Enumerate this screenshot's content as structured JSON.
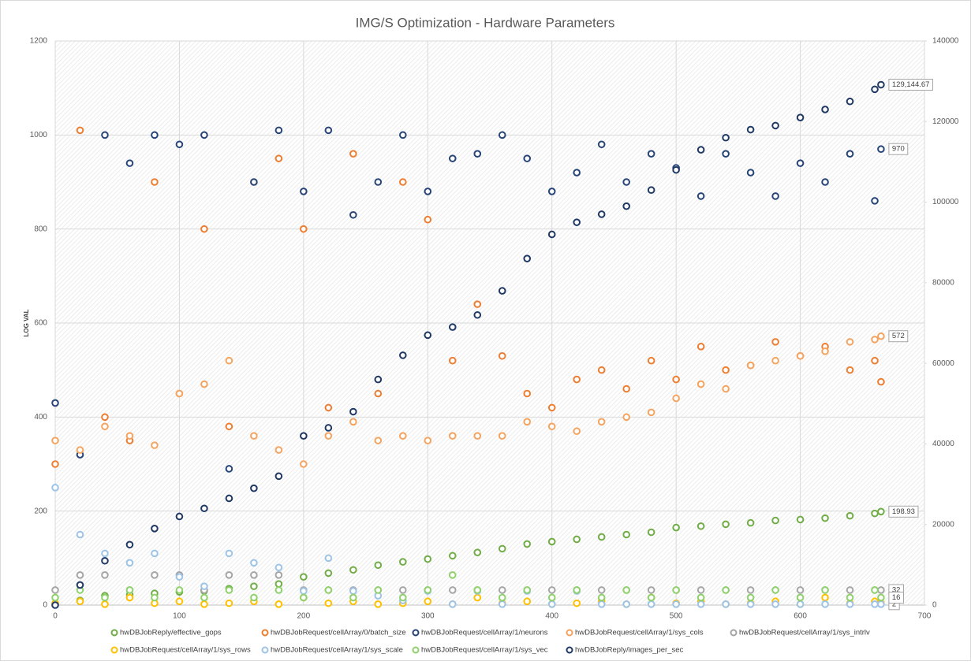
{
  "chart_data": {
    "type": "scatter",
    "title": "IMG/S Optimization - Hardware Parameters",
    "y_label": "LOG VAL",
    "x": [
      0,
      20,
      40,
      60,
      80,
      100,
      120,
      140,
      160,
      180,
      200,
      220,
      240,
      260,
      280,
      300,
      320,
      340,
      360,
      380,
      400,
      420,
      440,
      460,
      480,
      500,
      520,
      540,
      560,
      580,
      600,
      620,
      640,
      660,
      665
    ],
    "xlim": [
      0,
      700
    ],
    "xticks": [
      0,
      100,
      200,
      300,
      400,
      500,
      600,
      700
    ],
    "ylim": [
      0,
      1200
    ],
    "yticks": [
      0,
      200,
      400,
      600,
      800,
      1000,
      1200
    ],
    "y2lim": [
      0,
      140000
    ],
    "y2ticks": [
      0,
      20000,
      40000,
      60000,
      80000,
      100000,
      120000,
      140000
    ],
    "grid": true,
    "legend": "bottom",
    "series": [
      {
        "name": "hwDBJobReply/effective_gops",
        "color": "#70ad47",
        "values": [
          2,
          10,
          20,
          22,
          25,
          28,
          30,
          35,
          40,
          45,
          60,
          68,
          75,
          85,
          92,
          98,
          105,
          112,
          120,
          130,
          135,
          140,
          145,
          150,
          155,
          165,
          168,
          172,
          175,
          180,
          182,
          185,
          190,
          195,
          198.93
        ],
        "value_labels": [
          null,
          null,
          null,
          null,
          null,
          null,
          null,
          null,
          null,
          null,
          null,
          null,
          null,
          null,
          null,
          null,
          null,
          null,
          null,
          null,
          null,
          null,
          null,
          null,
          null,
          null,
          null,
          null,
          null,
          null,
          null,
          null,
          null,
          null,
          "198.93"
        ]
      },
      {
        "name": "hwDBJobRequest/cellArray/0/batch_size",
        "color": "#ed7d31",
        "values": [
          300,
          1010,
          400,
          350,
          900,
          450,
          800,
          380,
          900,
          950,
          800,
          420,
          960,
          450,
          900,
          820,
          520,
          640,
          530,
          450,
          420,
          480,
          500,
          460,
          520,
          480,
          550,
          500,
          510,
          560,
          530,
          550,
          500,
          520,
          475
        ]
      },
      {
        "name": "hwDBJobRequest/cellArray/1/neurons",
        "color": "#264478",
        "values": [
          430,
          320,
          1000,
          940,
          1000,
          980,
          1000,
          290,
          900,
          1010,
          880,
          1010,
          830,
          900,
          1000,
          880,
          950,
          960,
          1000,
          950,
          880,
          920,
          980,
          900,
          960,
          930,
          870,
          960,
          920,
          870,
          940,
          900,
          960,
          860,
          970
        ],
        "value_labels": [
          null,
          null,
          null,
          null,
          null,
          null,
          null,
          null,
          null,
          null,
          null,
          null,
          null,
          null,
          null,
          null,
          null,
          null,
          null,
          null,
          null,
          null,
          null,
          null,
          null,
          null,
          null,
          null,
          null,
          null,
          null,
          null,
          null,
          null,
          "970"
        ]
      },
      {
        "name": "hwDBJobRequest/cellArray/1/sys_cols",
        "color": "#f4a460",
        "values": [
          350,
          330,
          380,
          360,
          340,
          450,
          470,
          520,
          360,
          330,
          300,
          360,
          390,
          350,
          360,
          350,
          360,
          360,
          360,
          390,
          380,
          370,
          390,
          400,
          410,
          440,
          470,
          460,
          510,
          520,
          530,
          540,
          560,
          565,
          572
        ],
        "value_labels": [
          null,
          null,
          null,
          null,
          null,
          null,
          null,
          null,
          null,
          null,
          null,
          null,
          null,
          null,
          null,
          null,
          null,
          null,
          null,
          null,
          null,
          null,
          null,
          null,
          null,
          null,
          null,
          null,
          null,
          null,
          null,
          null,
          null,
          null,
          "572"
        ]
      },
      {
        "name": "hwDBJobRequest/cellArray/1/sys_intrlv",
        "color": "#a5a5a5",
        "values": [
          32,
          64,
          64,
          32,
          64,
          64,
          32,
          64,
          64,
          64,
          32,
          32,
          32,
          32,
          32,
          32,
          32,
          32,
          32,
          32,
          32,
          32,
          32,
          32,
          32,
          32,
          32,
          32,
          32,
          32,
          32,
          32,
          32,
          32,
          32
        ],
        "value_labels": [
          null,
          null,
          null,
          null,
          null,
          null,
          null,
          null,
          null,
          null,
          null,
          null,
          null,
          null,
          null,
          null,
          null,
          null,
          null,
          null,
          null,
          null,
          null,
          null,
          null,
          null,
          null,
          null,
          null,
          null,
          null,
          null,
          null,
          null,
          "32"
        ]
      },
      {
        "name": "hwDBJobRequest/cellArray/1/sys_rows",
        "color": "#ffc000",
        "values": [
          4,
          8,
          2,
          16,
          4,
          8,
          2,
          4,
          8,
          2,
          16,
          4,
          8,
          2,
          4,
          8,
          2,
          16,
          4,
          8,
          2,
          4,
          8,
          2,
          16,
          4,
          8,
          2,
          4,
          8,
          2,
          16,
          4,
          8,
          4
        ]
      },
      {
        "name": "hwDBJobRequest/cellArray/1/sys_scale",
        "color": "#9dc3e6",
        "values": [
          250,
          150,
          110,
          90,
          110,
          60,
          40,
          110,
          90,
          80,
          30,
          100,
          30,
          20,
          10,
          30,
          2,
          30,
          2,
          30,
          2,
          30,
          2,
          2,
          2,
          2,
          2,
          2,
          2,
          2,
          2,
          2,
          2,
          2,
          2
        ],
        "value_labels": [
          null,
          null,
          null,
          null,
          null,
          null,
          null,
          null,
          null,
          null,
          null,
          null,
          null,
          null,
          null,
          null,
          null,
          null,
          null,
          null,
          null,
          null,
          null,
          null,
          null,
          null,
          null,
          null,
          null,
          null,
          null,
          null,
          null,
          null,
          "2"
        ]
      },
      {
        "name": "hwDBJobRequest/cellArray/1/sys_vec",
        "color": "#8fd16a",
        "values": [
          16,
          32,
          16,
          32,
          16,
          32,
          16,
          32,
          16,
          32,
          16,
          32,
          16,
          32,
          16,
          32,
          64,
          32,
          16,
          32,
          16,
          32,
          16,
          32,
          16,
          32,
          16,
          32,
          16,
          32,
          16,
          32,
          16,
          32,
          16
        ],
        "value_labels": [
          null,
          null,
          null,
          null,
          null,
          null,
          null,
          null,
          null,
          null,
          null,
          null,
          null,
          null,
          null,
          null,
          null,
          null,
          null,
          null,
          null,
          null,
          null,
          null,
          null,
          null,
          null,
          null,
          null,
          null,
          null,
          null,
          null,
          null,
          "16"
        ]
      },
      {
        "name": "hwDBJobReply/images_per_sec",
        "color": "#1f3864",
        "axis": "y2",
        "values": [
          0,
          5000,
          11000,
          15000,
          19000,
          22000,
          24000,
          26500,
          29000,
          32000,
          42000,
          44000,
          48000,
          56000,
          62000,
          67000,
          69000,
          72000,
          78000,
          86000,
          92000,
          95000,
          97000,
          99000,
          103000,
          108000,
          113000,
          116000,
          118000,
          119000,
          121000,
          123000,
          125000,
          128000,
          129144.67
        ],
        "value_labels": [
          null,
          null,
          null,
          null,
          null,
          null,
          null,
          null,
          null,
          null,
          null,
          null,
          null,
          null,
          null,
          null,
          null,
          null,
          null,
          null,
          null,
          null,
          null,
          null,
          null,
          null,
          null,
          null,
          null,
          null,
          null,
          null,
          null,
          null,
          "129,144.67"
        ]
      }
    ]
  }
}
